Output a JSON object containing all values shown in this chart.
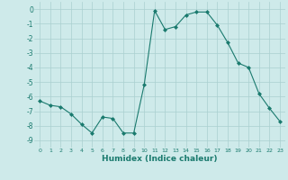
{
  "x": [
    0,
    1,
    2,
    3,
    4,
    5,
    6,
    7,
    8,
    9,
    10,
    11,
    12,
    13,
    14,
    15,
    16,
    17,
    18,
    19,
    20,
    21,
    22,
    23
  ],
  "y": [
    -6.3,
    -6.6,
    -6.7,
    -7.2,
    -7.9,
    -8.5,
    -7.4,
    -7.5,
    -8.5,
    -8.5,
    -5.2,
    -0.1,
    -1.4,
    -1.2,
    -0.4,
    -0.2,
    -0.2,
    -1.1,
    -2.3,
    -3.7,
    -4.0,
    -5.8,
    -6.8,
    -7.7
  ],
  "line_color": "#1a7a6e",
  "marker": "D",
  "marker_size": 2.0,
  "bg_color": "#ceeaea",
  "grid_color": "#aacfcf",
  "xlabel": "Humidex (Indice chaleur)",
  "xlim": [
    -0.5,
    23.5
  ],
  "ylim": [
    -9.5,
    0.5
  ],
  "yticks": [
    0,
    -1,
    -2,
    -3,
    -4,
    -5,
    -6,
    -7,
    -8,
    -9
  ],
  "xtick_labels": [
    "0",
    "1",
    "2",
    "3",
    "4",
    "5",
    "6",
    "7",
    "8",
    "9",
    "10",
    "11",
    "12",
    "13",
    "14",
    "15",
    "16",
    "17",
    "18",
    "19",
    "20",
    "21",
    "22",
    "23"
  ]
}
